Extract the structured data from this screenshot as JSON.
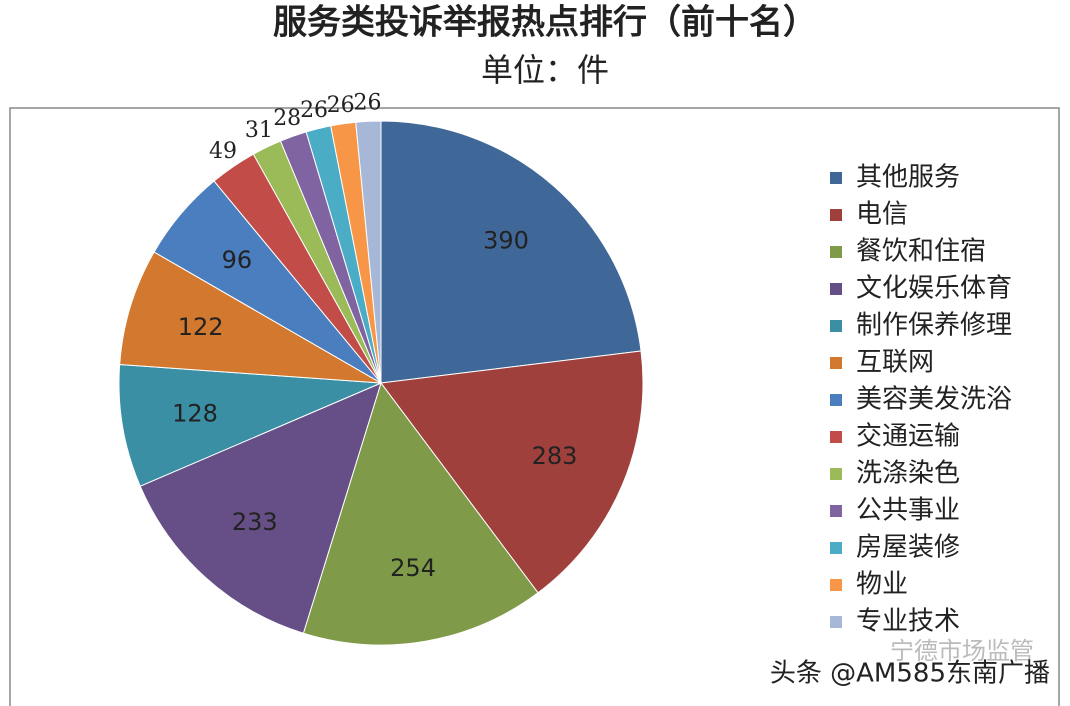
{
  "chart_data": {
    "type": "pie",
    "title": "服务类投诉举报热点排行（前十名）",
    "subtitle": "单位：件",
    "categories": [
      "其他服务",
      "电信",
      "餐饮和住宿",
      "文化娱乐体育",
      "制作保养修理",
      "互联网",
      "美容美发洗浴",
      "交通运输",
      "洗涤染色",
      "公共事业",
      "房屋装修",
      "物业",
      "专业技术"
    ],
    "values": [
      390,
      283,
      254,
      233,
      128,
      122,
      96,
      49,
      31,
      28,
      26,
      26,
      26
    ],
    "colors": [
      "#3f6797",
      "#a0403d",
      "#7f9a48",
      "#664f87",
      "#3b8fa5",
      "#d3792f",
      "#4a7ebf",
      "#c24c48",
      "#9bbb59",
      "#8064a2",
      "#4bacc6",
      "#f79646",
      "#a6b7d8"
    ],
    "legend": "right",
    "annotations": [
      "宁德市场监管",
      "头条 @AM585东南广播"
    ]
  }
}
